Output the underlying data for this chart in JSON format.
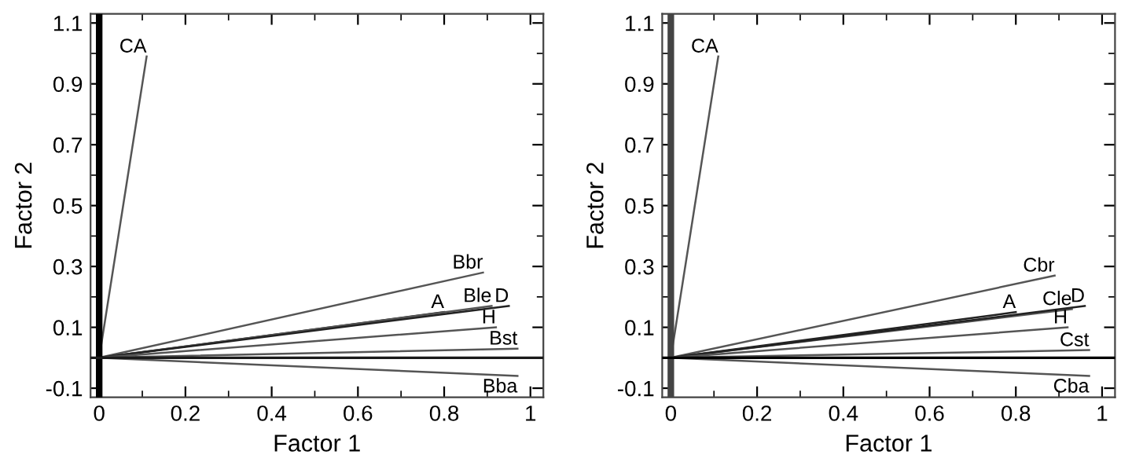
{
  "chart_data": [
    {
      "type": "line",
      "xlabel": "Factor 1",
      "ylabel": "Factor 2",
      "xlim": [
        -0.02,
        1.03
      ],
      "ylim": [
        -0.13,
        1.13
      ],
      "xticks": [
        0,
        0.2,
        0.4,
        0.6,
        0.8,
        1
      ],
      "yticks": [
        -0.1,
        0.1,
        0.3,
        0.5,
        0.7,
        0.9,
        1.1
      ],
      "grid": false,
      "legend": false,
      "marker": "none",
      "line_style": "solid",
      "ref_lines": [
        {
          "axis": "x",
          "value": 0,
          "color": "#000000"
        },
        {
          "axis": "y",
          "value": 0,
          "color": "#1a1a1a"
        }
      ],
      "series": [
        {
          "name": "CA",
          "color": "#555555",
          "x": [
            0,
            0.11
          ],
          "values": [
            0,
            0.99
          ]
        },
        {
          "name": "Bbr",
          "color": "#555555",
          "x": [
            0,
            0.89
          ],
          "values": [
            0,
            0.28
          ]
        },
        {
          "name": "A",
          "color": "#222222",
          "x": [
            0,
            0.8
          ],
          "values": [
            0,
            0.15
          ]
        },
        {
          "name": "Ble",
          "color": "#555555",
          "x": [
            0,
            0.91
          ],
          "values": [
            0,
            0.17
          ]
        },
        {
          "name": "D",
          "color": "#222222",
          "x": [
            0,
            0.95
          ],
          "values": [
            0,
            0.17
          ]
        },
        {
          "name": "H",
          "color": "#555555",
          "x": [
            0,
            0.92
          ],
          "values": [
            0,
            0.1
          ]
        },
        {
          "name": "Bst",
          "color": "#555555",
          "x": [
            0,
            0.97
          ],
          "values": [
            0,
            0.03
          ]
        },
        {
          "name": "Bba",
          "color": "#555555",
          "x": [
            0,
            0.97
          ],
          "values": [
            0,
            -0.06
          ]
        }
      ]
    },
    {
      "type": "line",
      "xlabel": "Factor 1",
      "ylabel": "Factor 2",
      "xlim": [
        -0.02,
        1.03
      ],
      "ylim": [
        -0.13,
        1.13
      ],
      "xticks": [
        0,
        0.2,
        0.4,
        0.6,
        0.8,
        1
      ],
      "yticks": [
        -0.1,
        0.1,
        0.3,
        0.5,
        0.7,
        0.9,
        1.1
      ],
      "grid": false,
      "legend": false,
      "marker": "none",
      "line_style": "solid",
      "ref_lines": [
        {
          "axis": "x",
          "value": 0,
          "color": "#444444"
        },
        {
          "axis": "y",
          "value": 0,
          "color": "#000000"
        }
      ],
      "series": [
        {
          "name": "CA",
          "color": "#555555",
          "x": [
            0,
            0.11
          ],
          "values": [
            0,
            0.99
          ]
        },
        {
          "name": "Cbr",
          "color": "#555555",
          "x": [
            0,
            0.89
          ],
          "values": [
            0,
            0.27
          ]
        },
        {
          "name": "A",
          "color": "#222222",
          "x": [
            0,
            0.8
          ],
          "values": [
            0,
            0.15
          ]
        },
        {
          "name": "Cle",
          "color": "#555555",
          "x": [
            0,
            0.93
          ],
          "values": [
            0,
            0.16
          ]
        },
        {
          "name": "D",
          "color": "#222222",
          "x": [
            0,
            0.96
          ],
          "values": [
            0,
            0.17
          ]
        },
        {
          "name": "H",
          "color": "#555555",
          "x": [
            0,
            0.92
          ],
          "values": [
            0,
            0.1
          ]
        },
        {
          "name": "Cst",
          "color": "#555555",
          "x": [
            0,
            0.97
          ],
          "values": [
            0,
            0.025
          ]
        },
        {
          "name": "Cba",
          "color": "#555555",
          "x": [
            0,
            0.97
          ],
          "values": [
            0,
            -0.06
          ]
        }
      ]
    }
  ]
}
